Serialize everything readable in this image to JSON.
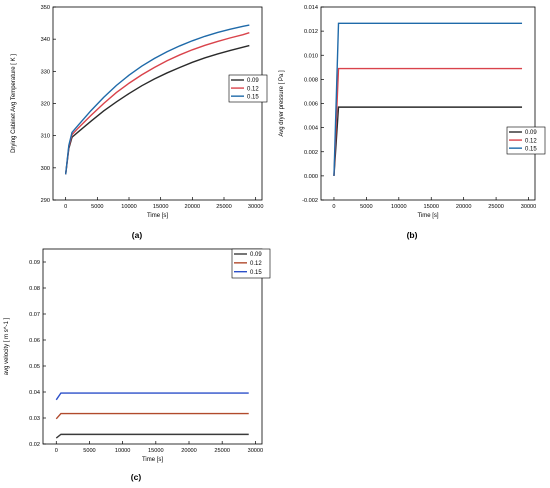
{
  "panel_labels": {
    "a": "(a)",
    "b": "(b)",
    "c": "(c)"
  },
  "colors": {
    "s009": "#2b2b2b",
    "s012": "#d9434b",
    "s015": "#1f6aa9",
    "s015c": "#2b4fc9",
    "s012c": "#b14a2c",
    "s009c": "#3a3a3a"
  },
  "chart_data": [
    {
      "id": "a",
      "type": "line",
      "title": "",
      "xlabel": "Time [s]",
      "ylabel": "Drying Cabinet Avg Temperature [ K ]",
      "xlim": [
        -2000,
        31000
      ],
      "ylim": [
        290,
        350
      ],
      "xticks": [
        0,
        5000,
        10000,
        15000,
        20000,
        25000,
        30000
      ],
      "yticks": [
        290,
        300,
        310,
        320,
        330,
        340,
        350
      ],
      "xtick_labels": [
        "0",
        "5000",
        "10000",
        "15000",
        "20000",
        "25000",
        "30000"
      ],
      "ytick_labels": [
        "290",
        "300",
        "310",
        "320",
        "330",
        "340",
        "350"
      ],
      "legend": "right",
      "series": [
        {
          "name": "0.09",
          "x": [
            0,
            500,
            1000,
            2000,
            4000,
            6000,
            8000,
            10000,
            12000,
            14000,
            16000,
            18000,
            20000,
            22000,
            24000,
            26000,
            28000,
            29000
          ],
          "y": [
            298,
            306,
            309.5,
            311.2,
            314.5,
            317.7,
            320.5,
            323.1,
            325.5,
            327.6,
            329.5,
            331.2,
            332.8,
            334.2,
            335.4,
            336.5,
            337.5,
            338
          ]
        },
        {
          "name": "0.12",
          "x": [
            0,
            500,
            1000,
            2000,
            4000,
            6000,
            8000,
            10000,
            12000,
            14000,
            16000,
            18000,
            20000,
            22000,
            24000,
            26000,
            28000,
            29000
          ],
          "y": [
            298,
            306.5,
            310.3,
            312.4,
            316.3,
            320,
            323.4,
            326.3,
            328.9,
            331.2,
            333.3,
            335.1,
            336.7,
            338.1,
            339.3,
            340.4,
            341.4,
            342
          ]
        },
        {
          "name": "0.15",
          "x": [
            0,
            500,
            1000,
            2000,
            4000,
            6000,
            8000,
            10000,
            12000,
            14000,
            16000,
            18000,
            20000,
            22000,
            24000,
            26000,
            28000,
            29000
          ],
          "y": [
            298,
            307,
            311,
            313.3,
            317.8,
            321.9,
            325.6,
            328.8,
            331.6,
            334,
            336.1,
            337.9,
            339.5,
            340.9,
            342.1,
            343.1,
            344,
            344.4
          ]
        }
      ]
    },
    {
      "id": "b",
      "type": "line",
      "title": "",
      "xlabel": "Time [s]",
      "ylabel": "Avg dryer pressure [ Pa ]",
      "xlim": [
        -2000,
        31000
      ],
      "ylim": [
        -0.002,
        0.014
      ],
      "xticks": [
        0,
        5000,
        10000,
        15000,
        20000,
        25000,
        30000
      ],
      "yticks": [
        -0.002,
        0,
        0.002,
        0.004,
        0.006,
        0.008,
        0.01,
        0.012,
        0.014
      ],
      "xtick_labels": [
        "0",
        "5000",
        "10000",
        "15000",
        "20000",
        "25000",
        "30000"
      ],
      "ytick_labels": [
        "-0.002",
        "0.000",
        "0.002",
        "0.004",
        "0.006",
        "0.008",
        "0.010",
        "0.012",
        "0.014"
      ],
      "legend": "bottom-right",
      "series": [
        {
          "name": "0.09",
          "x": [
            0,
            700,
            29000
          ],
          "y": [
            0,
            0.0057,
            0.0057
          ]
        },
        {
          "name": "0.12",
          "x": [
            0,
            700,
            29000
          ],
          "y": [
            0,
            0.0089,
            0.0089
          ]
        },
        {
          "name": "0.15",
          "x": [
            0,
            700,
            29000
          ],
          "y": [
            0,
            0.01265,
            0.01265
          ]
        }
      ]
    },
    {
      "id": "c",
      "type": "line",
      "title": "",
      "xlabel": "Time [s]",
      "ylabel": "avg velocity [ m s^-1 ]",
      "xlim": [
        -2000,
        31000
      ],
      "ylim": [
        0.02,
        0.095
      ],
      "xticks": [
        0,
        5000,
        10000,
        15000,
        20000,
        25000,
        30000
      ],
      "yticks": [
        0.02,
        0.03,
        0.04,
        0.05,
        0.06,
        0.07,
        0.08,
        0.09
      ],
      "xtick_labels": [
        "0",
        "5000",
        "10000",
        "15000",
        "20000",
        "25000",
        "30000"
      ],
      "ytick_labels": [
        "0.02",
        "0.03",
        "0.04",
        "0.05",
        "0.06",
        "0.07",
        "0.08",
        "0.09"
      ],
      "legend": "top-right",
      "series": [
        {
          "name": "0.09",
          "x": [
            0,
            700,
            29000
          ],
          "y": [
            0.0223,
            0.0237,
            0.0237
          ]
        },
        {
          "name": "0.12",
          "x": [
            0,
            700,
            29000
          ],
          "y": [
            0.0297,
            0.0317,
            0.0317
          ]
        },
        {
          "name": "0.15",
          "x": [
            0,
            700,
            29000
          ],
          "y": [
            0.037,
            0.0396,
            0.0396
          ]
        }
      ]
    }
  ]
}
